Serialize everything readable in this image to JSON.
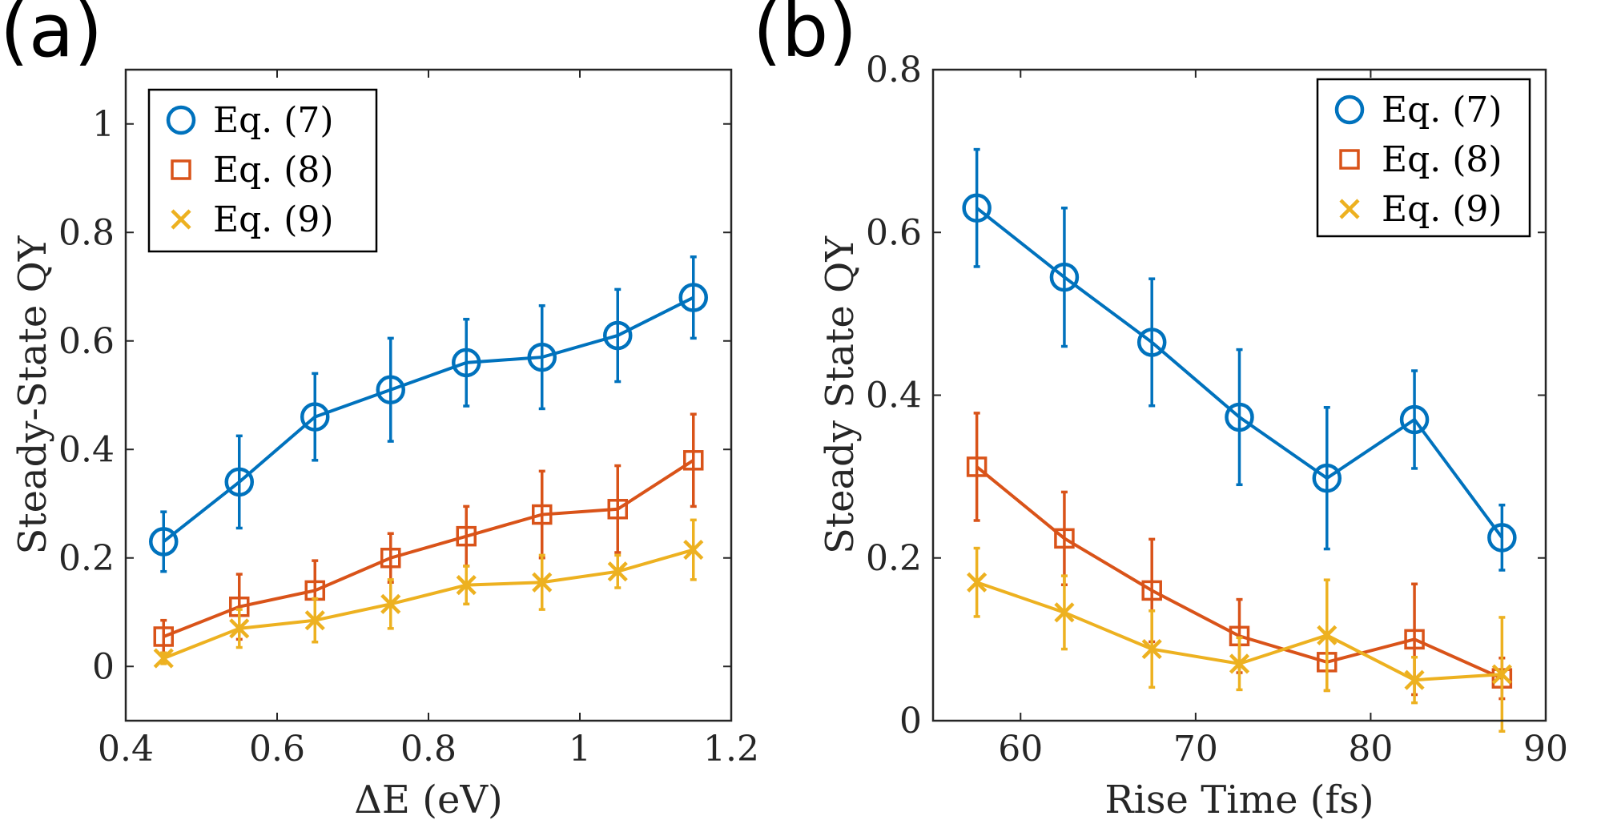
{
  "colors": {
    "series1": "#0072BD",
    "series2": "#D95319",
    "series3": "#EDB120",
    "axis": "#262626"
  },
  "chart_data": [
    {
      "panel": "(a)",
      "type": "line",
      "xlabel": "ΔE (eV)",
      "ylabel": "Steady-State QY",
      "xlim": [
        0.4,
        1.2
      ],
      "ylim": [
        -0.1,
        1.1
      ],
      "xticks": [
        "0.4",
        "0.6",
        "0.8",
        "1",
        "1.2"
      ],
      "yticks": [
        "0",
        "0.2",
        "0.4",
        "0.6",
        "0.8",
        "1"
      ],
      "legend_position": "top-left",
      "x": [
        0.45,
        0.55,
        0.65,
        0.75,
        0.85,
        0.95,
        1.05,
        1.15
      ],
      "series": [
        {
          "name": "Eq. (7)",
          "marker": "circle",
          "values": [
            0.23,
            0.34,
            0.46,
            0.51,
            0.56,
            0.57,
            0.61,
            0.68
          ],
          "errors": [
            0.055,
            0.085,
            0.08,
            0.095,
            0.08,
            0.095,
            0.085,
            0.075
          ]
        },
        {
          "name": "Eq. (8)",
          "marker": "square",
          "values": [
            0.055,
            0.11,
            0.14,
            0.2,
            0.24,
            0.28,
            0.29,
            0.38
          ],
          "errors": [
            0.03,
            0.06,
            0.055,
            0.045,
            0.055,
            0.08,
            0.08,
            0.085
          ]
        },
        {
          "name": "Eq. (9)",
          "marker": "x",
          "values": [
            0.015,
            0.07,
            0.085,
            0.115,
            0.15,
            0.155,
            0.175,
            0.215
          ],
          "errors": [
            0.01,
            0.035,
            0.04,
            0.045,
            0.035,
            0.05,
            0.03,
            0.055
          ]
        }
      ]
    },
    {
      "panel": "(b)",
      "type": "line",
      "xlabel": "Rise Time (fs)",
      "ylabel": "Steady State QY",
      "xlim": [
        55,
        90
      ],
      "ylim": [
        0,
        0.8
      ],
      "xticks": [
        "60",
        "70",
        "80",
        "90"
      ],
      "yticks": [
        "0",
        "0.2",
        "0.4",
        "0.6",
        "0.8"
      ],
      "legend_position": "top-right",
      "x": [
        57.5,
        62.5,
        67.5,
        72.5,
        77.5,
        82.5,
        87.5
      ],
      "series": [
        {
          "name": "Eq. (7)",
          "marker": "circle",
          "values": [
            0.63,
            0.545,
            0.465,
            0.373,
            0.298,
            0.37,
            0.225
          ],
          "errors": [
            0.072,
            0.085,
            0.078,
            0.083,
            0.087,
            0.06,
            0.04
          ]
        },
        {
          "name": "Eq. (8)",
          "marker": "square",
          "values": [
            0.312,
            0.224,
            0.16,
            0.104,
            0.072,
            0.1,
            0.052
          ],
          "errors": [
            0.066,
            0.057,
            0.063,
            0.045,
            0.035,
            0.068,
            0.025
          ]
        },
        {
          "name": "Eq. (9)",
          "marker": "x",
          "values": [
            0.17,
            0.133,
            0.088,
            0.07,
            0.105,
            0.05,
            0.057
          ],
          "errors": [
            0.042,
            0.045,
            0.047,
            0.032,
            0.068,
            0.028,
            0.07
          ]
        }
      ]
    }
  ]
}
